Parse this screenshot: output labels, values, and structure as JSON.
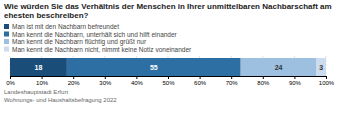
{
  "chart_data": {
    "type": "bar",
    "title": "Wie würden Sie das Verhältnis der Menschen in Ihrer unmittelbaren Nachbarschaft am ehesten beschreiben?",
    "orientation": "horizontal",
    "stacked": true,
    "categories": [
      null
    ],
    "series": [
      {
        "name": "Man ist mit den Nachbarn befreundet",
        "color": "#1a4e78",
        "values": [
          18
        ]
      },
      {
        "name": "Man kennt die Nachbarn, unterhält sich und hilft einander",
        "color": "#2d6fa3",
        "values": [
          55
        ]
      },
      {
        "name": "Man kennt die Nachbarn flüchtig und grüßt nur",
        "color": "#9dbfe0",
        "values": [
          24
        ]
      },
      {
        "name": "Man kennt die Nachbarn nicht, nimmt keine Notiz voneinander",
        "color": "#ccdcee",
        "values": [
          3
        ]
      }
    ],
    "xlim": [
      0,
      100
    ],
    "xticks": [
      {
        "value": 0,
        "label": "0%"
      },
      {
        "value": 10,
        "label": "10%"
      },
      {
        "value": 20,
        "label": "20%"
      },
      {
        "value": 30,
        "label": "30%"
      },
      {
        "value": 40,
        "label": "40%"
      },
      {
        "value": 50,
        "label": "50%"
      },
      {
        "value": 60,
        "label": "60%"
      },
      {
        "value": 70,
        "label": "70%"
      },
      {
        "value": 80,
        "label": "80%"
      },
      {
        "value": 90,
        "label": "90%"
      },
      {
        "value": 100,
        "label": "100%"
      }
    ],
    "grid": true,
    "legend": "top",
    "data_labels": true,
    "tick_labels": "x",
    "annotations": [
      "Landeshauptstadt Erfurt",
      "Wohnungs- und Haushaltsbefragung 2022"
    ]
  }
}
